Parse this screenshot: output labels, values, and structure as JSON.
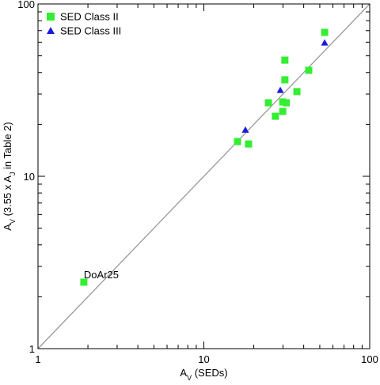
{
  "chart_data": {
    "type": "scatter",
    "log_x": true,
    "log_y": true,
    "xlabel": [
      "A",
      "V",
      " (SEDs)"
    ],
    "ylabel": [
      "A",
      "V",
      " (3.55 x A",
      "J",
      " in Table 2)"
    ],
    "xlim": [
      1,
      100
    ],
    "ylim": [
      1,
      100
    ],
    "xticks": [
      1,
      10,
      100
    ],
    "yticks": [
      1,
      10,
      100
    ],
    "minor_ticks": [
      2,
      3,
      4,
      5,
      6,
      7,
      8,
      9,
      20,
      30,
      40,
      50,
      60,
      70,
      80,
      90
    ],
    "identity_line": true,
    "line_color": "#999999",
    "legend": "upper left",
    "series": [
      {
        "name": "SED Class II",
        "color": "#33ee33",
        "marker": "square",
        "x": [
          1.89,
          15.96,
          18.6,
          53.5,
          30.8,
          42.9,
          30.8,
          36.4,
          24.5,
          29.9,
          31.4,
          27.0,
          29.9
        ],
        "values": [
          2.43,
          15.9,
          15.4,
          68.4,
          47.2,
          41.2,
          36.3,
          31.0,
          26.7,
          27.0,
          26.7,
          22.3,
          23.8
        ]
      },
      {
        "name": "SED Class III",
        "color": "#1a1adc",
        "marker": "triangle",
        "x": [
          17.8,
          28.9,
          53.5
        ],
        "values": [
          18.6,
          31.6,
          59.6
        ]
      }
    ],
    "annotations": [
      {
        "text": "DoAr25",
        "series": 0,
        "index": 0
      }
    ]
  }
}
